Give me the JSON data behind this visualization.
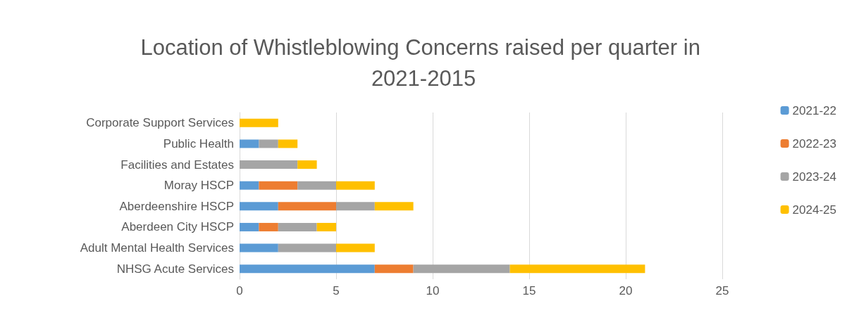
{
  "chart_data": {
    "type": "bar",
    "orientation": "horizontal",
    "stacked": true,
    "title": "Location of Whistleblowing Concerns raised per quarter in 2021-2015",
    "categories": [
      "Corporate Support Services",
      "Public Health",
      "Facilities and Estates",
      "Moray HSCP",
      "Aberdeenshire HSCP",
      "Aberdeen City HSCP",
      "Adult Mental Health Services",
      "NHSG Acute Services"
    ],
    "series": [
      {
        "name": "2021-22",
        "color": "#5b9bd5",
        "values": [
          0,
          1,
          0,
          1,
          2,
          1,
          2,
          7
        ]
      },
      {
        "name": "2022-23",
        "color": "#ed7d31",
        "values": [
          0,
          0,
          0,
          2,
          3,
          1,
          0,
          2
        ]
      },
      {
        "name": "2023-24",
        "color": "#a5a5a5",
        "values": [
          0,
          1,
          3,
          2,
          2,
          2,
          3,
          5
        ]
      },
      {
        "name": "2024-25",
        "color": "#ffc000",
        "values": [
          2,
          1,
          1,
          2,
          2,
          1,
          2,
          7
        ]
      }
    ],
    "xlim": [
      0,
      25
    ],
    "xticks": [
      0,
      5,
      10,
      15,
      20,
      25
    ],
    "grid": "x",
    "legend": "right"
  }
}
